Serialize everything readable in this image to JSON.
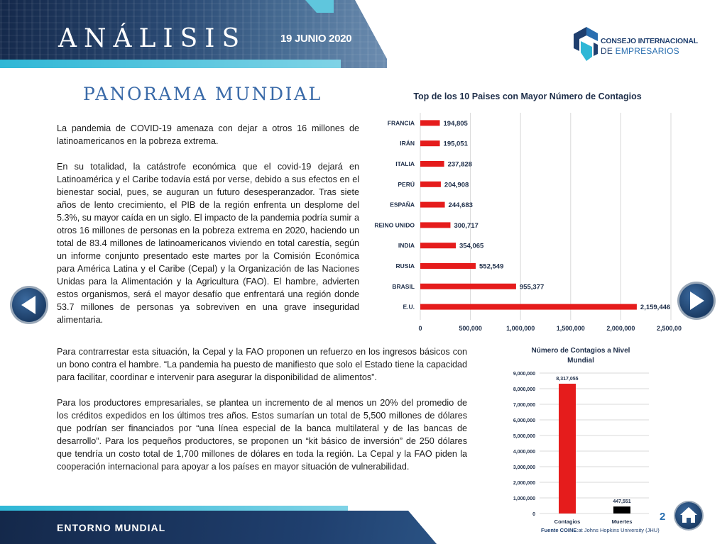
{
  "header": {
    "title": "ANÁLISIS",
    "date": "19 JUNIO 2020"
  },
  "logo": {
    "line1": "CONSEJO INTERNACIONAL",
    "line2_prefix": "DE ",
    "line2_emphasis": "EMPRESARIOS"
  },
  "section": {
    "title": "PANORAMA MUNDIAL"
  },
  "body": {
    "p1": "La pandemia de COVID-19 amenaza con dejar a otros 16 millones de latinoamericanos en la pobreza extrema.",
    "p2": "En su totalidad, la catástrofe económica que el covid-19 dejará en Latinoamérica y el Caribe todavía está por verse, debido a sus efectos en el bienestar social, pues, se auguran un futuro desesperanzador. Tras siete años de lento crecimiento, el PIB de la región enfrenta un desplome del 5.3%, su mayor caída en un siglo. El impacto de la pandemia podría sumir a otros 16 millones de personas en la pobreza extrema en 2020, haciendo un total de 83.4 millones de latinoamericanos viviendo en total carestía, según un informe conjunto presentado este martes por la Comisión Económica para América Latina y el Caribe (Cepal) y la Organización de las Naciones Unidas para la Alimentación y la Agricultura (FAO). El hambre, advierten estos organismos, será el mayor desafío que enfrentará una región donde 53.7 millones de personas ya sobreviven en una grave inseguridad alimentaria.",
    "p3": "Para contrarrestar esta situación, la Cepal y la FAO proponen un refuerzo en los ingresos básicos con un bono contra el hambre. “La pandemia ha puesto de manifiesto que solo el Estado tiene la capacidad para facilitar, coordinar e intervenir para asegurar la disponibilidad de alimentos”.",
    "p4": "Para los productores empresariales, se plantea un incremento de al menos un 20% del promedio de los créditos expedidos en los últimos tres años. Estos sumarían un total de 5,500 millones de dólares que podrían ser financiados por “una línea especial de la banca multilateral y de las bancas de desarrollo”. Para los pequeños productores, se proponen un “kit básico de inversión” de 250 dólares que tendría un costo total de 1,700 millones de dólares en toda la región. La Cepal y la FAO piden la cooperación internacional para apoyar a los países en mayor situación de vulnerabilidad."
  },
  "chart_data": [
    {
      "type": "bar",
      "orientation": "horizontal",
      "title": "Top de los 10 Paises con Mayor Número de Contagios",
      "categories": [
        "FRANCIA",
        "IRÁN",
        "ITALIA",
        "PERÚ",
        "ESPAÑA",
        "REINO UNIDO",
        "INDIA",
        "RUSIA",
        "BRASIL",
        "E.U."
      ],
      "values": [
        194805,
        195051,
        237828,
        204908,
        244683,
        300717,
        354065,
        552549,
        955377,
        2159446
      ],
      "value_labels": [
        "194,805",
        "195,051",
        "237,828",
        "204,908",
        "244,683",
        "300,717",
        "354,065",
        "552,549",
        "955,377",
        "2,159,446"
      ],
      "xlim": [
        0,
        2500000
      ],
      "xticks": [
        "0",
        "500,000",
        "1,000,000",
        "1,500,000",
        "2,000,000",
        "2,500,000"
      ],
      "grid": true,
      "bar_color": "#e51c1c"
    },
    {
      "type": "bar",
      "title_line1": "Número de Contagios a Nivel",
      "title_line2": "Mundial",
      "categories": [
        "Contagios",
        "Muertes"
      ],
      "values": [
        8317055,
        447551
      ],
      "value_labels": [
        "8,317,055",
        "447,551"
      ],
      "colors": [
        "#e51c1c",
        "#000000"
      ],
      "ylim": [
        0,
        9000000
      ],
      "yticks": [
        "0",
        "1,000,000",
        "2,000,000",
        "3,000,000",
        "4,000,000",
        "5,000,000",
        "6,000,000",
        "7,000,000",
        "8,000,000",
        "9,000,000"
      ],
      "grid": true
    }
  ],
  "nav": {
    "page_number": "2"
  },
  "footer": {
    "label": "ENTORNO MUNDIAL",
    "source_bold": "Fuente COINE",
    "source_rest": ":at Johns Hopkins University (JHU)"
  },
  "icons": {
    "prev": "arrow-left-icon",
    "next": "arrow-right-icon",
    "home": "home-icon"
  },
  "colors": {
    "navy": "#1f3f6e",
    "accent_cyan": "#2fb7d6",
    "title_blue": "#3a6aa8",
    "bar_red": "#e51c1c"
  }
}
